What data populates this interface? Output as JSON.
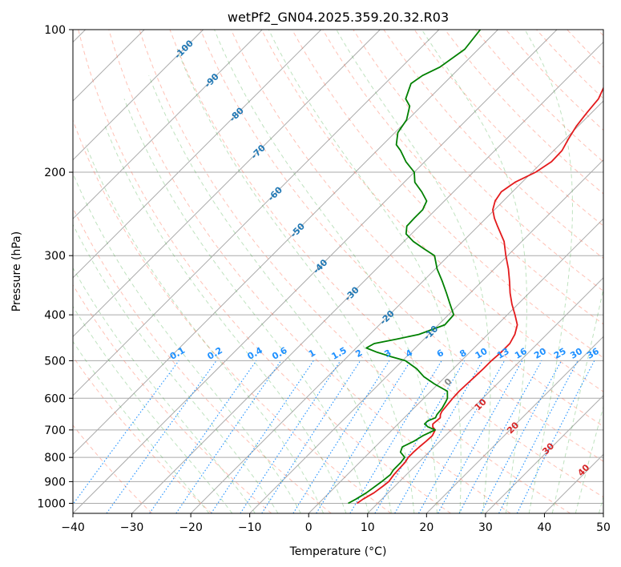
{
  "chart_data": {
    "type": "line",
    "chart_kind": "skew-T log-p diagram",
    "title": "wetPf2_GN04.2025.359.20.32.R03",
    "xlabel": "Temperature (°C)",
    "ylabel": "Pressure (hPa)",
    "xlim": [
      -40,
      50
    ],
    "ylim": [
      1050,
      100
    ],
    "x_ticks": [
      -40,
      -30,
      -20,
      -10,
      0,
      10,
      20,
      30,
      40,
      50
    ],
    "x_tick_labels": [
      "−40",
      "−30",
      "−20",
      "−10",
      "0",
      "10",
      "20",
      "30",
      "40",
      "50"
    ],
    "y_ticks": [
      100,
      200,
      300,
      400,
      500,
      600,
      700,
      800,
      900,
      1000
    ],
    "y_tick_labels": [
      "100",
      "200",
      "300",
      "400",
      "500",
      "600",
      "700",
      "800",
      "900",
      "1000"
    ],
    "isotherm_labels": [
      "-100",
      "-90",
      "-80",
      "-70",
      "-60",
      "-50",
      "-40",
      "-30",
      "-20",
      "-10"
    ],
    "isotherm_label_values": [
      -100,
      -90,
      -80,
      -70,
      -60,
      -50,
      -40,
      -30,
      -20,
      -10
    ],
    "mixing_ratio_labels": [
      "0.1",
      "0.2",
      "0.4",
      "0.6",
      "1",
      "1.5",
      "2",
      "3",
      "4",
      "6",
      "8",
      "10",
      "13",
      "16",
      "20",
      "25",
      "30",
      "36"
    ],
    "mixing_ratio_values": [
      0.1,
      0.2,
      0.4,
      0.6,
      1,
      1.5,
      2,
      3,
      4,
      6,
      8,
      10,
      13,
      16,
      20,
      25,
      30,
      36
    ],
    "moist_adiabat_labels": [
      "0",
      "10",
      "20",
      "30",
      "40"
    ],
    "moist_adiabat_values": [
      0,
      10,
      20,
      30,
      40
    ],
    "series": [
      {
        "name": "Temperature",
        "color": "#e31a1c",
        "points": [
          [
            1000,
            6.5
          ],
          [
            980,
            6.8
          ],
          [
            950,
            7.6
          ],
          [
            920,
            8.0
          ],
          [
            900,
            8.2
          ],
          [
            870,
            7.9
          ],
          [
            850,
            7.8
          ],
          [
            820,
            7.7
          ],
          [
            800,
            7.4
          ],
          [
            780,
            7.4
          ],
          [
            760,
            7.5
          ],
          [
            740,
            7.7
          ],
          [
            720,
            7.8
          ],
          [
            700,
            7.3
          ],
          [
            690,
            6.4
          ],
          [
            680,
            5.9
          ],
          [
            670,
            6.0
          ],
          [
            660,
            6.1
          ],
          [
            650,
            5.6
          ],
          [
            640,
            5.3
          ],
          [
            620,
            5.1
          ],
          [
            600,
            4.9
          ],
          [
            580,
            4.8
          ],
          [
            560,
            4.9
          ],
          [
            540,
            5.0
          ],
          [
            520,
            5.1
          ],
          [
            500,
            5.1
          ],
          [
            480,
            5.3
          ],
          [
            460,
            5.3
          ],
          [
            440,
            4.6
          ],
          [
            420,
            3.4
          ],
          [
            400,
            1.3
          ],
          [
            380,
            -1.0
          ],
          [
            360,
            -3.2
          ],
          [
            340,
            -5.3
          ],
          [
            320,
            -7.6
          ],
          [
            300,
            -10.3
          ],
          [
            280,
            -13.0
          ],
          [
            260,
            -16.7
          ],
          [
            250,
            -18.6
          ],
          [
            240,
            -20.3
          ],
          [
            230,
            -21.4
          ],
          [
            220,
            -21.9
          ],
          [
            210,
            -21.2
          ],
          [
            200,
            -19.4
          ],
          [
            190,
            -18.5
          ],
          [
            180,
            -18.6
          ],
          [
            170,
            -19.5
          ],
          [
            160,
            -20.3
          ],
          [
            150,
            -20.8
          ],
          [
            140,
            -21.2
          ],
          [
            130,
            -22.6
          ],
          [
            120,
            -24.1
          ],
          [
            110,
            -26.5
          ],
          [
            100,
            -29.3
          ]
        ]
      },
      {
        "name": "Dewpoint",
        "color": "#008000",
        "points": [
          [
            1000,
            5.0
          ],
          [
            980,
            5.6
          ],
          [
            950,
            6.3
          ],
          [
            900,
            7.0
          ],
          [
            870,
            7.3
          ],
          [
            850,
            7.0
          ],
          [
            820,
            7.0
          ],
          [
            800,
            6.8
          ],
          [
            780,
            5.2
          ],
          [
            760,
            4.6
          ],
          [
            740,
            5.6
          ],
          [
            720,
            6.2
          ],
          [
            700,
            7.3
          ],
          [
            690,
            5.6
          ],
          [
            680,
            4.5
          ],
          [
            670,
            4.5
          ],
          [
            660,
            5.3
          ],
          [
            650,
            5.0
          ],
          [
            630,
            4.8
          ],
          [
            610,
            4.3
          ],
          [
            600,
            4.0
          ],
          [
            580,
            2.8
          ],
          [
            560,
            -0.6
          ],
          [
            540,
            -3.7
          ],
          [
            520,
            -6.2
          ],
          [
            500,
            -9.5
          ],
          [
            490,
            -12.7
          ],
          [
            480,
            -15.7
          ],
          [
            470,
            -18.3
          ],
          [
            460,
            -17.7
          ],
          [
            450,
            -14.6
          ],
          [
            440,
            -11.7
          ],
          [
            420,
            -8.9
          ],
          [
            400,
            -9.1
          ],
          [
            380,
            -11.5
          ],
          [
            360,
            -14.0
          ],
          [
            340,
            -16.7
          ],
          [
            320,
            -19.7
          ],
          [
            300,
            -22.4
          ],
          [
            290,
            -25.4
          ],
          [
            280,
            -28.4
          ],
          [
            270,
            -30.9
          ],
          [
            260,
            -32.1
          ],
          [
            250,
            -32.2
          ],
          [
            240,
            -32.2
          ],
          [
            230,
            -33.0
          ],
          [
            220,
            -35.4
          ],
          [
            210,
            -38.2
          ],
          [
            200,
            -40.0
          ],
          [
            190,
            -43.2
          ],
          [
            180,
            -46.0
          ],
          [
            175,
            -47.7
          ],
          [
            165,
            -49.5
          ],
          [
            155,
            -50.2
          ],
          [
            145,
            -52.0
          ],
          [
            140,
            -53.9
          ],
          [
            130,
            -55.6
          ],
          [
            125,
            -55.0
          ],
          [
            120,
            -53.5
          ],
          [
            110,
            -52.3
          ],
          [
            100,
            -53.0
          ]
        ]
      }
    ],
    "background_lines": [
      "isobars",
      "isotherms",
      "dry adiabats",
      "moist adiabats",
      "mixing ratio lines"
    ],
    "grid": true
  },
  "colors": {
    "temperature": "#e31a1c",
    "dewpoint": "#008000",
    "isotherm_label": "#1f77b4",
    "mixing_ratio": "#1e90ff",
    "moist_adiabat_label": "#d62728",
    "dry_adiabat": "#ff6347",
    "moist_adiabat": "#2ca02c"
  }
}
